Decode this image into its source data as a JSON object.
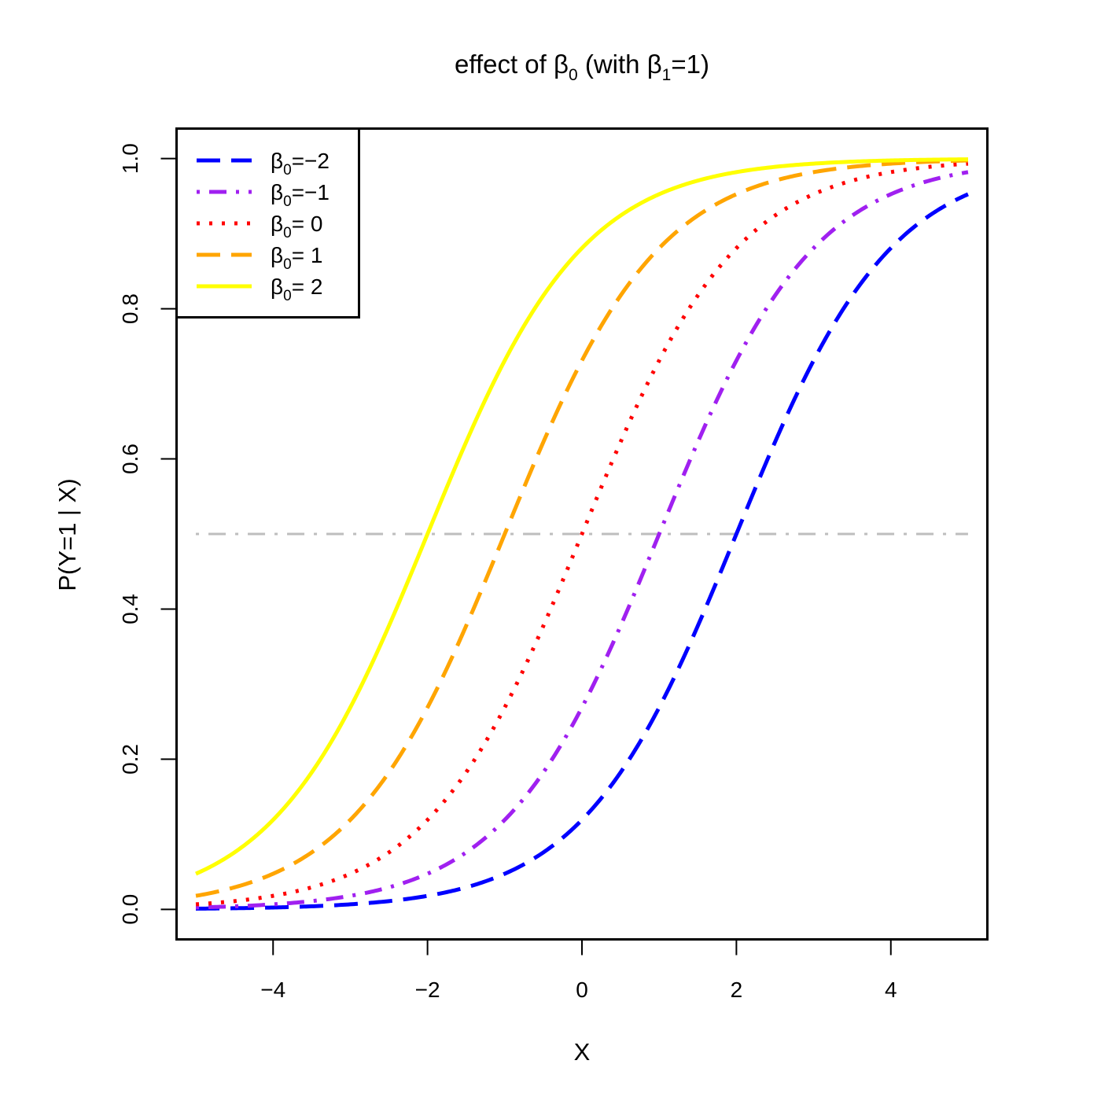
{
  "chart_data": {
    "type": "line",
    "title_parts": {
      "prefix": "effect of ",
      "beta1": "β",
      "sub1": "0",
      "middle": " (with ",
      "beta2": "β",
      "sub2": "1",
      "suffix": "=1)"
    },
    "xlabel": "X",
    "ylabel": "P(Y=1 | X)",
    "xlim": [
      -5.25,
      5.25
    ],
    "ylim": [
      -0.04,
      1.04
    ],
    "x_ticks": [
      -4,
      -2,
      0,
      2,
      4
    ],
    "x_tick_labels": [
      "−4",
      "−2",
      "0",
      "2",
      "4"
    ],
    "y_ticks": [
      0,
      0.2,
      0.4,
      0.6,
      0.8,
      1.0
    ],
    "y_tick_labels": [
      "0.0",
      "0.2",
      "0.4",
      "0.6",
      "0.8",
      "1.0"
    ],
    "grid": false,
    "legend_position": "top-left",
    "x_range": [
      -5,
      5
    ],
    "reference_line": {
      "y": 0.5,
      "x": [
        -5,
        5
      ],
      "color": "#bebebe",
      "style": "dashdot"
    },
    "series": [
      {
        "name": "β0=−2",
        "label_symbol": "β",
        "label_sub": "0",
        "label_rest": "=−2",
        "beta0": -2,
        "beta1": 1,
        "color": "#0000ff",
        "style": "dashed"
      },
      {
        "name": "β0=−1",
        "label_symbol": "β",
        "label_sub": "0",
        "label_rest": "=−1",
        "beta0": -1,
        "beta1": 1,
        "color": "#a020f0",
        "style": "dashdot"
      },
      {
        "name": "β0= 0",
        "label_symbol": "β",
        "label_sub": "0",
        "label_rest": "= 0",
        "beta0": 0,
        "beta1": 1,
        "color": "#ff0000",
        "style": "dotted"
      },
      {
        "name": "β0= 1",
        "label_symbol": "β",
        "label_sub": "0",
        "label_rest": "= 1",
        "beta0": 1,
        "beta1": 1,
        "color": "#ffa500",
        "style": "dashed"
      },
      {
        "name": "β0= 2",
        "label_symbol": "β",
        "label_sub": "0",
        "label_rest": "= 2",
        "beta0": 2,
        "beta1": 1,
        "color": "#ffff00",
        "style": "solid"
      }
    ]
  }
}
